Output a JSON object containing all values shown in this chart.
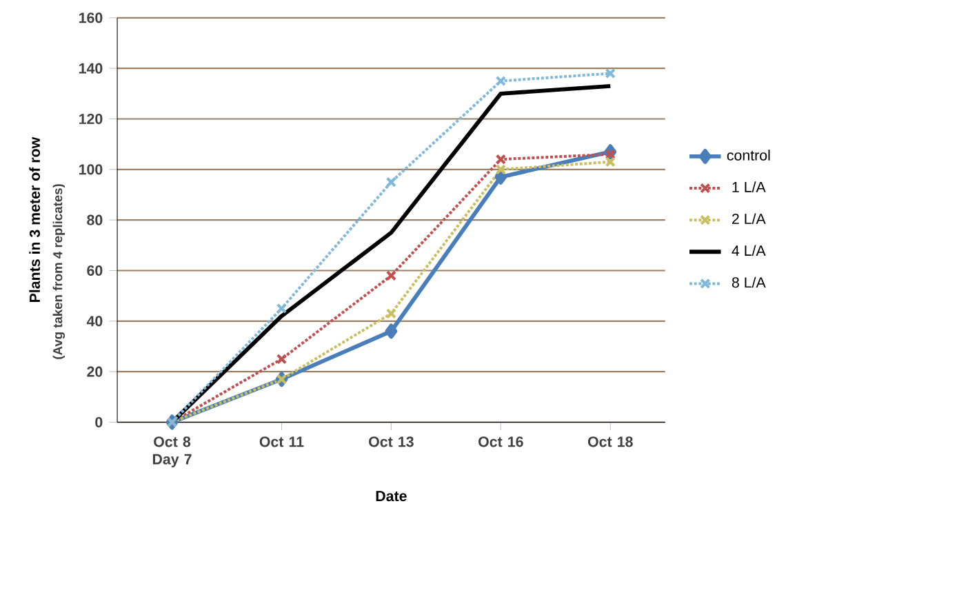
{
  "chart_data": {
    "type": "line",
    "xlabel": "Date",
    "ylabel": "Plants in 3 meter of row",
    "annotations": [
      "(Avg taken from 4 replicates)"
    ],
    "categories": [
      "Oct 8 Day 7",
      "Oct 11",
      "Oct 13",
      "Oct 16",
      "Oct 18"
    ],
    "ylim": [
      0,
      160
    ],
    "yticks": [
      0,
      20,
      40,
      60,
      80,
      100,
      120,
      140,
      160
    ],
    "grid": "y",
    "legend": "right",
    "series": [
      {
        "name": "control",
        "color": "#4a7ebb",
        "values": [
          0,
          17,
          36,
          97,
          107
        ],
        "marker": "diamond",
        "line_style": "solid"
      },
      {
        "name": "1 L/A",
        "color": "#c0504d",
        "values": [
          0,
          25,
          58,
          104,
          106
        ],
        "marker": "cross",
        "line_style": "dotted"
      },
      {
        "name": "2 L/A",
        "color": "#c8c060",
        "values": [
          0,
          17,
          43,
          100,
          103
        ],
        "marker": "cross",
        "line_style": "dotted"
      },
      {
        "name": "4 L/A",
        "color": "#000000",
        "values": [
          0,
          42,
          75,
          130,
          133
        ],
        "marker": "none",
        "line_style": "solid"
      },
      {
        "name": "8 L/A",
        "color": "#7fb8d8",
        "values": [
          0,
          45,
          95,
          135,
          138
        ],
        "marker": "cross",
        "line_style": "dotted"
      }
    ]
  }
}
